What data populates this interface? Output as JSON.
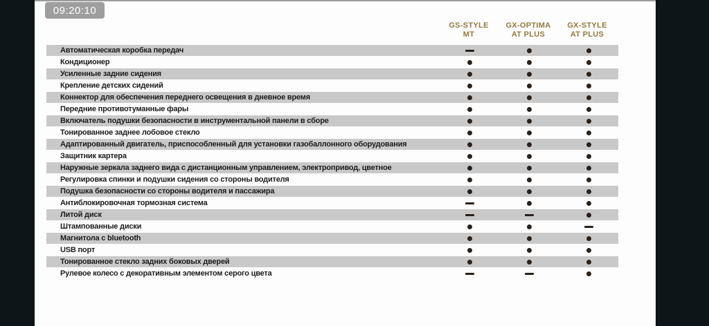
{
  "timestamp": "09:20:10",
  "columns": [
    {
      "line1": "GS-STYLE",
      "line2": "MT"
    },
    {
      "line1": "GX-OPTIMA",
      "line2": "AT PLUS"
    },
    {
      "line1": "GX-STYLE",
      "line2": "AT PLUS"
    }
  ],
  "rows": [
    {
      "label": "Автоматическая коробка передач",
      "values": [
        "dash",
        "dot",
        "dot"
      ]
    },
    {
      "label": "Кондиционер",
      "values": [
        "dot",
        "dot",
        "dot"
      ]
    },
    {
      "label": "Усиленные задние сидения",
      "values": [
        "dot",
        "dot",
        "dot"
      ]
    },
    {
      "label": "Крепление детских сидений",
      "values": [
        "dot",
        "dot",
        "dot"
      ]
    },
    {
      "label": "Коннектор для обеспечения переднего освещения в дневное время",
      "values": [
        "dot",
        "dot",
        "dot"
      ]
    },
    {
      "label": "Передние противотуманные фары",
      "values": [
        "dot",
        "dot",
        "dot"
      ]
    },
    {
      "label": "Включатель подушки безопасности в инструментальной панели в сборе",
      "values": [
        "dot",
        "dot",
        "dot"
      ]
    },
    {
      "label": "Тонированное заднее лобовое стекло",
      "values": [
        "dot",
        "dot",
        "dot"
      ]
    },
    {
      "label": "Адаптированный двигатель, приспособленный для установки газобаллонного оборудования",
      "values": [
        "dot",
        "dot",
        "dot"
      ]
    },
    {
      "label": "Защитник картера",
      "values": [
        "dot",
        "dot",
        "dot"
      ]
    },
    {
      "label": "Наружные зеркала заднего вида  с дистанционным управлением, электропривод, цветное",
      "values": [
        "dot",
        "dot",
        "dot"
      ]
    },
    {
      "label": "Регулировка спинки и подушки сидения со стороны водителя",
      "values": [
        "dot",
        "dot",
        "dot"
      ]
    },
    {
      "label": "Подушка безопасности со стороны водителя и пассажира",
      "values": [
        "dot",
        "dot",
        "dot"
      ]
    },
    {
      "label": "Антиблокировочная тормозная система",
      "values": [
        "dash",
        "dot",
        "dot"
      ]
    },
    {
      "label": "Литой диск",
      "values": [
        "dash",
        "dash",
        "dot"
      ]
    },
    {
      "label": "Штампованные диски",
      "values": [
        "dot",
        "dot",
        "dash"
      ]
    },
    {
      "label": "Магнитола  с bluetooth",
      "values": [
        "dot",
        "dot",
        "dot"
      ]
    },
    {
      "label": "USB порт",
      "values": [
        "dot",
        "dot",
        "dot"
      ]
    },
    {
      "label": "Тонированное стекло задних боковых дверей",
      "values": [
        "dot",
        "dot",
        "dot"
      ]
    },
    {
      "label": "Рулевое колесо с декоративным элементом серого цвета",
      "values": [
        "dash",
        "dash",
        "dot"
      ]
    }
  ],
  "colors": {
    "accent_gold": "#95793f",
    "stripe_gray": "#c9c9c9",
    "letterbox_black": "#0e1517",
    "badge_gray": "#9e9e9e",
    "top_line_gray": "#9c9c9c",
    "marker_dark": "#2a211a",
    "label_ink": "#1c1c1c",
    "page_background": "#fdfdfd"
  }
}
